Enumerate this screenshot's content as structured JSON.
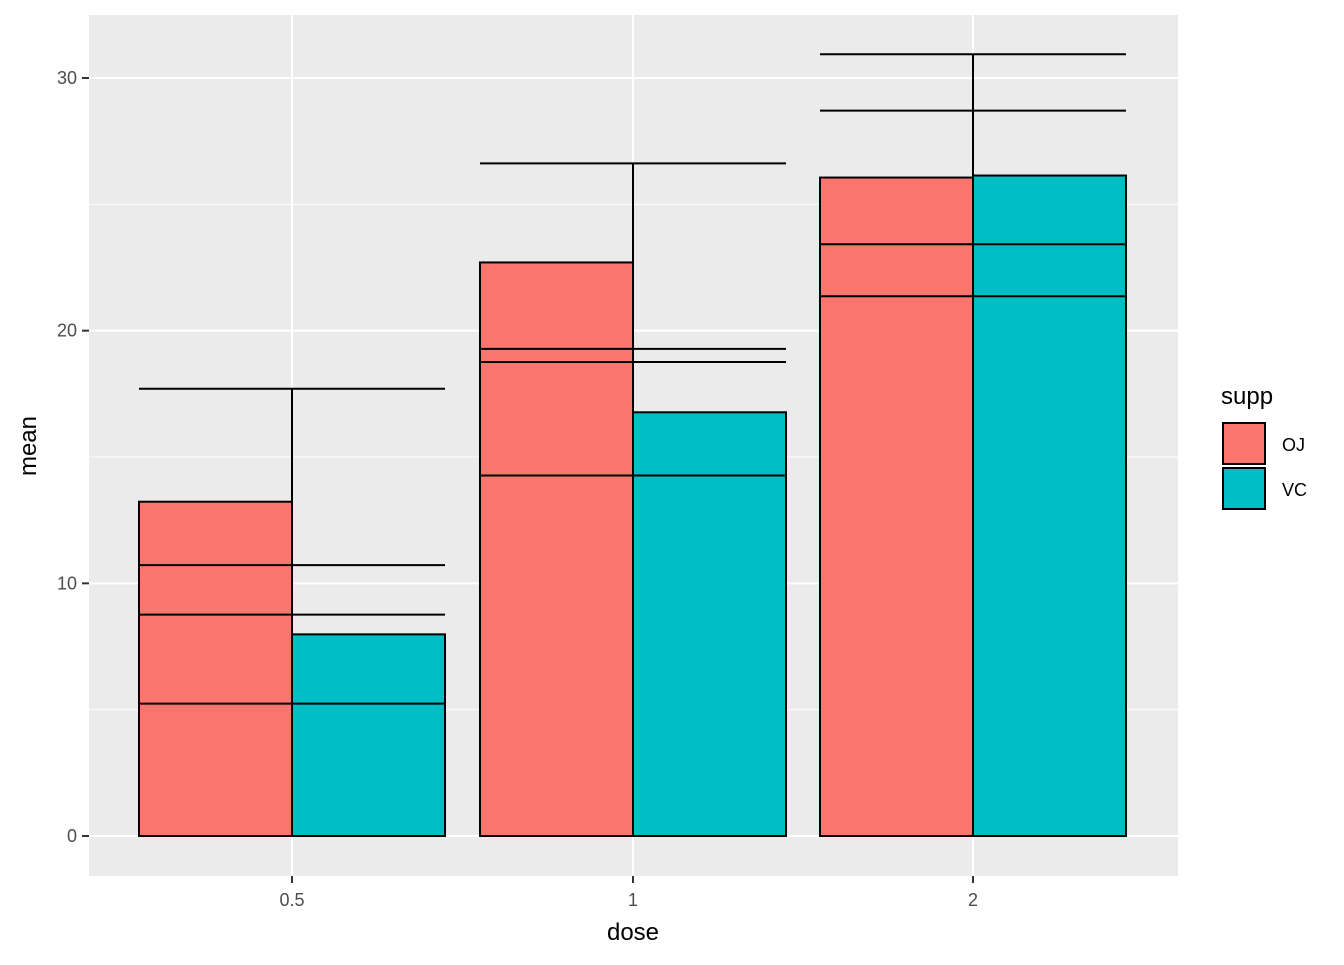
{
  "chart_data": {
    "type": "bar",
    "xlabel": "dose",
    "ylabel": "mean",
    "categories": [
      "0.5",
      "1",
      "2"
    ],
    "ylim": [
      -1.5,
      32.5
    ],
    "yticks": [
      0,
      10,
      20,
      30
    ],
    "ytick_labels": [
      "0",
      "10",
      "20",
      "30"
    ],
    "grid": true,
    "legend": {
      "title": "supp",
      "position": "right"
    },
    "series": [
      {
        "name": "OJ",
        "color": "#F8766D",
        "values": [
          13.23,
          22.7,
          26.06
        ]
      },
      {
        "name": "VC",
        "color": "#00BFC4",
        "values": [
          7.98,
          16.77,
          26.14
        ]
      }
    ],
    "error_bars": [
      {
        "category": "0.5",
        "lows": [
          5.24,
          8.76,
          10.72
        ],
        "highs": [
          17.7
        ]
      },
      {
        "category": "1",
        "lows": [
          14.27,
          18.76,
          19.28
        ],
        "highs": [
          26.62
        ]
      },
      {
        "category": "2",
        "lows": [
          21.36,
          23.42,
          28.71
        ],
        "highs": [
          30.94
        ]
      }
    ]
  }
}
